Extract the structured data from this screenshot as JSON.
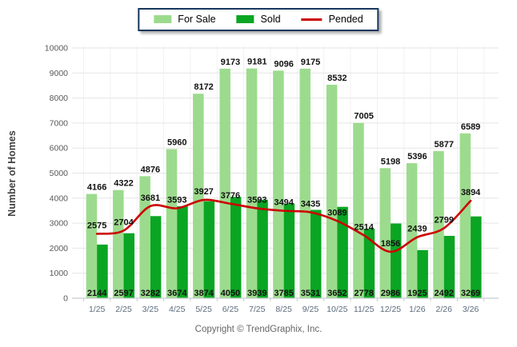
{
  "ylabel": "Number of Homes",
  "footer": {
    "copyright": "Copyright © TrendGraphix, Inc."
  },
  "colors": {
    "for_sale": "#9CDB8D",
    "sold": "#0AA523",
    "pended": "#CC0000",
    "legend_border": "#17375E",
    "grid_h": "#E5E5E5",
    "grid_v": "#F1F1F1",
    "axis_line": "#C8CDD2",
    "tick_label": "#595959",
    "x_label": "#5B6B7B",
    "value_label": "#111111"
  },
  "chart_data": {
    "type": "bar",
    "title": "",
    "xlabel": "",
    "ylabel": "Number of Homes",
    "ylim": [
      0,
      10000
    ],
    "ytick_step": 1000,
    "grid": true,
    "legend_position": "top",
    "categories": [
      "1/25",
      "2/25",
      "3/25",
      "4/25",
      "5/25",
      "6/25",
      "7/25",
      "8/25",
      "9/25",
      "10/25",
      "11/25",
      "12/25",
      "1/26",
      "2/26",
      "3/26"
    ],
    "series": [
      {
        "name": "For Sale",
        "type": "bar",
        "color": "#9CDB8D",
        "values": [
          4166,
          4322,
          4876,
          5960,
          8172,
          9173,
          9181,
          9096,
          9175,
          8532,
          7005,
          5198,
          5396,
          5877,
          6589
        ]
      },
      {
        "name": "Sold",
        "type": "bar",
        "color": "#0AA523",
        "values": [
          2144,
          2597,
          3282,
          3674,
          3874,
          4050,
          3939,
          3785,
          3531,
          3652,
          2778,
          2986,
          1925,
          2492,
          3269
        ]
      },
      {
        "name": "Pended",
        "type": "line",
        "color": "#CC0000",
        "values": [
          2575,
          2704,
          3681,
          3593,
          3927,
          3776,
          3593,
          3494,
          3435,
          3089,
          2514,
          1856,
          2439,
          2799,
          3894
        ]
      }
    ]
  }
}
